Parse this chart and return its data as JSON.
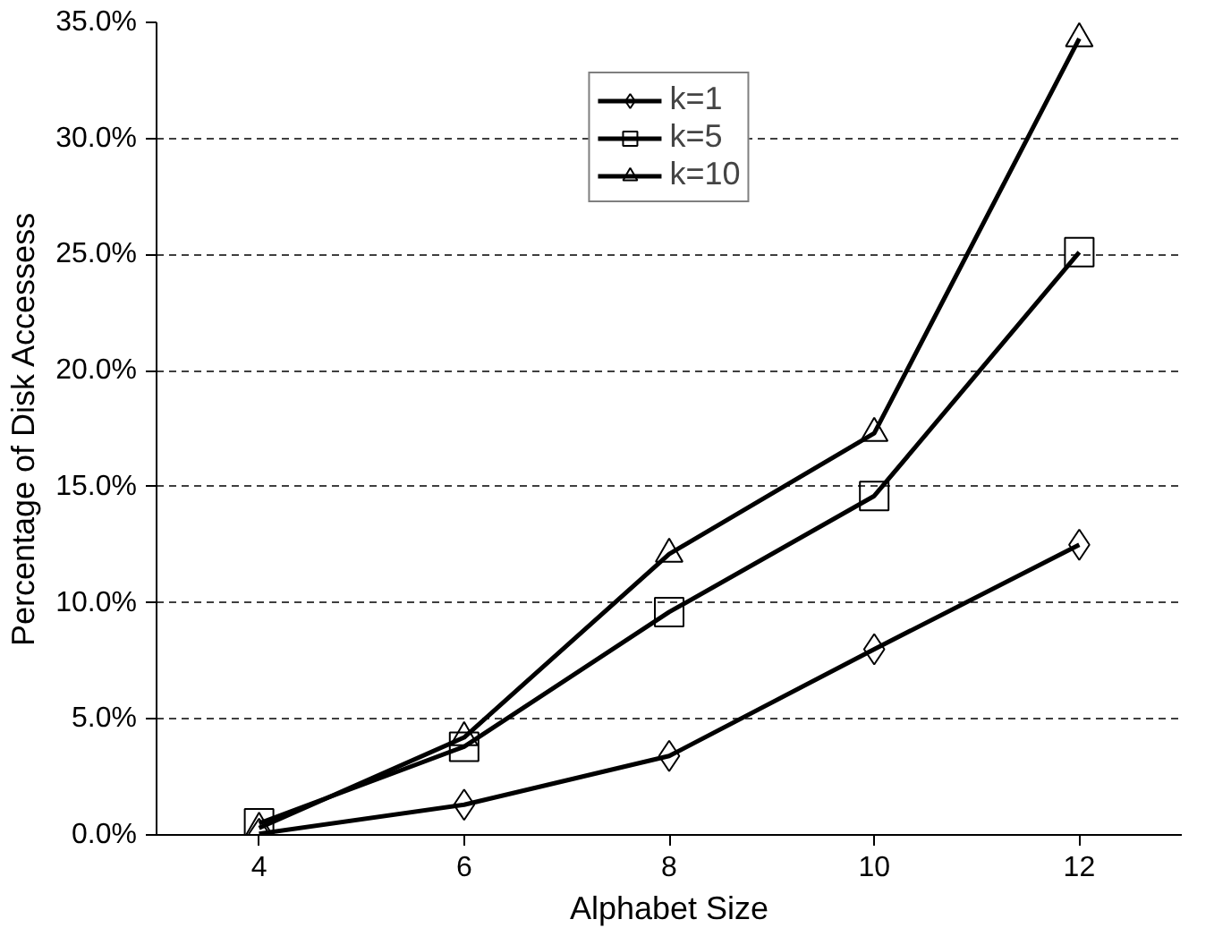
{
  "chart_data": {
    "type": "line",
    "xlabel": "Alphabet Size",
    "ylabel": "Percentage of Disk Accessess",
    "categories": [
      "4",
      "6",
      "8",
      "10",
      "12"
    ],
    "ylim": [
      0,
      35
    ],
    "yticks": [
      {
        "value": 0,
        "label": "0.0%"
      },
      {
        "value": 5,
        "label": "5.0%"
      },
      {
        "value": 10,
        "label": "10.0%"
      },
      {
        "value": 15,
        "label": "15.0%"
      },
      {
        "value": 20,
        "label": "20.0%"
      },
      {
        "value": 25,
        "label": "25.0%"
      },
      {
        "value": 30,
        "label": "30.0%"
      },
      {
        "value": 35,
        "label": "35.0%"
      }
    ],
    "grid": "y",
    "legend": "top",
    "line_style": "solid",
    "series": [
      {
        "name": "k=1",
        "color": "#000000",
        "marker": "diamond",
        "values": [
          0.05,
          1.3,
          3.4,
          8.0,
          12.5
        ]
      },
      {
        "name": "k=5",
        "color": "#000000",
        "marker": "square",
        "values": [
          0.5,
          3.8,
          9.6,
          14.6,
          25.1
        ]
      },
      {
        "name": "k=10",
        "color": "#000000",
        "marker": "triangle",
        "values": [
          0.3,
          4.2,
          12.1,
          17.3,
          34.3
        ]
      }
    ]
  }
}
